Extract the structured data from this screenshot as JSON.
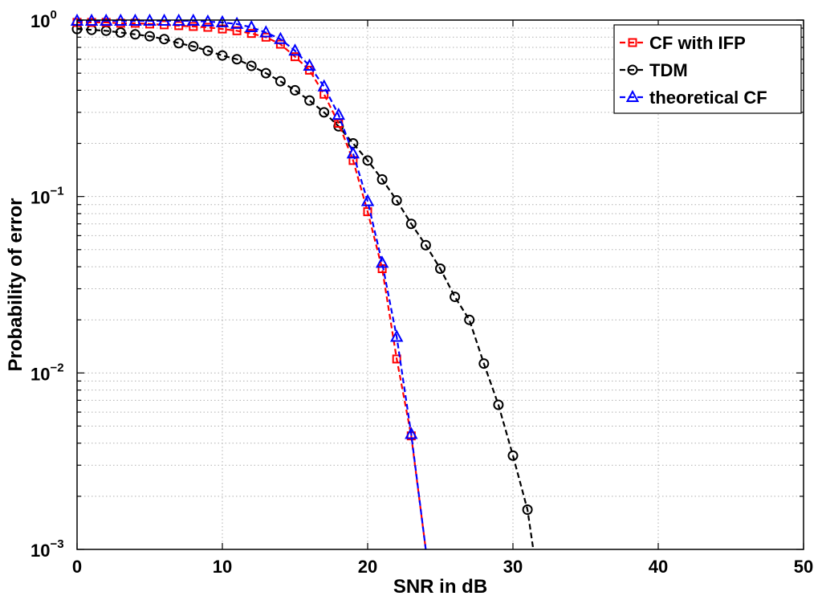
{
  "chart_data": {
    "type": "line",
    "title": "",
    "xlabel": "SNR in dB",
    "ylabel": "Probability of error",
    "xlim": [
      0,
      50
    ],
    "ylim": [
      0.001,
      1
    ],
    "yscale": "log",
    "grid": true,
    "x_ticks": [
      0,
      10,
      20,
      30,
      40,
      50
    ],
    "x_tick_labels": [
      "0",
      "10",
      "20",
      "30",
      "40",
      "50"
    ],
    "y_ticks": [
      {
        "value": 1,
        "base": "10",
        "exp": "0"
      },
      {
        "value": 0.1,
        "base": "10",
        "exp": "−1"
      },
      {
        "value": 0.01,
        "base": "10",
        "exp": "−2"
      },
      {
        "value": 0.001,
        "base": "10",
        "exp": "−3"
      }
    ],
    "legend_position": "top-right",
    "series": [
      {
        "name": "CF with IFP",
        "color": "#ff0000",
        "marker": "square",
        "line_style": "dashed",
        "x": [
          0,
          1,
          2,
          3,
          4,
          5,
          6,
          7,
          8,
          9,
          10,
          11,
          12,
          13,
          14,
          15,
          16,
          17,
          18,
          19,
          20,
          21,
          22,
          23,
          24
        ],
        "y": [
          0.97,
          0.97,
          0.97,
          0.96,
          0.96,
          0.95,
          0.94,
          0.93,
          0.92,
          0.91,
          0.89,
          0.87,
          0.84,
          0.8,
          0.73,
          0.62,
          0.52,
          0.38,
          0.26,
          0.16,
          0.082,
          0.039,
          0.012,
          0.0044,
          0.001
        ],
        "markers_until_index": 23
      },
      {
        "name": "TDM",
        "color": "#000000",
        "marker": "circle",
        "line_style": "dashed",
        "x": [
          0,
          1,
          2,
          3,
          4,
          5,
          6,
          7,
          8,
          9,
          10,
          11,
          12,
          13,
          14,
          15,
          16,
          17,
          18,
          19,
          20,
          21,
          22,
          23,
          24,
          25,
          26,
          27,
          28,
          29,
          30,
          31,
          31.4
        ],
        "y": [
          0.89,
          0.88,
          0.87,
          0.85,
          0.83,
          0.81,
          0.78,
          0.74,
          0.71,
          0.67,
          0.63,
          0.6,
          0.55,
          0.5,
          0.45,
          0.4,
          0.35,
          0.3,
          0.25,
          0.2,
          0.16,
          0.125,
          0.095,
          0.07,
          0.053,
          0.039,
          0.027,
          0.02,
          0.0113,
          0.0066,
          0.0034,
          0.00168,
          0.001
        ],
        "markers_until_index": 31
      },
      {
        "name": "theoretical CF",
        "color": "#0000ff",
        "marker": "triangle",
        "line_style": "dashed",
        "x": [
          0,
          1,
          2,
          3,
          4,
          5,
          6,
          7,
          8,
          9,
          10,
          11,
          12,
          13,
          14,
          15,
          16,
          17,
          18,
          19,
          20,
          21,
          22,
          23,
          24
        ],
        "y": [
          0.99,
          0.99,
          0.99,
          0.99,
          0.99,
          0.99,
          0.99,
          0.99,
          0.99,
          0.98,
          0.97,
          0.95,
          0.91,
          0.85,
          0.78,
          0.67,
          0.55,
          0.42,
          0.29,
          0.175,
          0.094,
          0.042,
          0.016,
          0.0045,
          0.001
        ],
        "markers_until_index": 23
      }
    ]
  }
}
